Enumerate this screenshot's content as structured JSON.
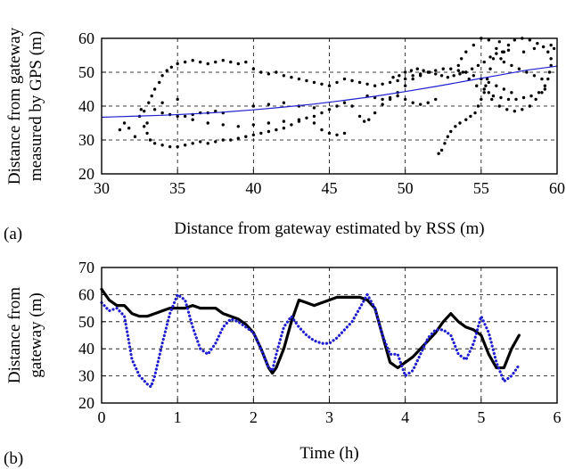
{
  "chart_data": [
    {
      "panel_label": "(a)",
      "type": "scatter",
      "xlabel": "Distance from gateway estimated by RSS (m)",
      "ylabel_lines": [
        "Distance from gateway",
        "measured by GPS (m)"
      ],
      "xlim": [
        30,
        60
      ],
      "ylim": [
        20,
        60
      ],
      "xticks": [
        30,
        35,
        40,
        45,
        50,
        55,
        60
      ],
      "yticks": [
        20,
        30,
        40,
        50,
        60
      ],
      "grid": true,
      "colors": {
        "points": "#000000",
        "fit": "#1f1fd0"
      },
      "points": [
        [
          31.2,
          33
        ],
        [
          31.5,
          35
        ],
        [
          31.8,
          33.5
        ],
        [
          32.2,
          31
        ],
        [
          32.5,
          37
        ],
        [
          32.6,
          39
        ],
        [
          32.8,
          38.5
        ],
        [
          33,
          35
        ],
        [
          33.1,
          41
        ],
        [
          33.3,
          43
        ],
        [
          33.5,
          45
        ],
        [
          33.8,
          47
        ],
        [
          34,
          49
        ],
        [
          34.3,
          50.5
        ],
        [
          34.6,
          51.5
        ],
        [
          35,
          52.5
        ],
        [
          35.5,
          53
        ],
        [
          36,
          53.5
        ],
        [
          36.5,
          53
        ],
        [
          37,
          52.5
        ],
        [
          37.5,
          53
        ],
        [
          38,
          53.5
        ],
        [
          38.5,
          53
        ],
        [
          39,
          52.5
        ],
        [
          39.5,
          53
        ],
        [
          40,
          51
        ],
        [
          40.5,
          50
        ],
        [
          41,
          49.5
        ],
        [
          41.5,
          50
        ],
        [
          42,
          49
        ],
        [
          42.5,
          48.5
        ],
        [
          43,
          48
        ],
        [
          43.5,
          47.5
        ],
        [
          44,
          47
        ],
        [
          44.5,
          46.5
        ],
        [
          45,
          46
        ],
        [
          45.5,
          47
        ],
        [
          46,
          48
        ],
        [
          46.5,
          47.5
        ],
        [
          47,
          47
        ],
        [
          47.5,
          46.5
        ],
        [
          48,
          46
        ],
        [
          48.5,
          46.5
        ],
        [
          49,
          47
        ],
        [
          49.5,
          47.5
        ],
        [
          50,
          48
        ],
        [
          50.5,
          49
        ],
        [
          51,
          49.5
        ],
        [
          51.5,
          50
        ],
        [
          52,
          50.5
        ],
        [
          52.5,
          51
        ],
        [
          53,
          51
        ],
        [
          53.5,
          50.5
        ],
        [
          54,
          50
        ],
        [
          54.5,
          49
        ],
        [
          55,
          48
        ],
        [
          55.5,
          47
        ],
        [
          56,
          46
        ],
        [
          56.5,
          45
        ],
        [
          57,
          44
        ],
        [
          32.8,
          34
        ],
        [
          33,
          32
        ],
        [
          33.2,
          30
        ],
        [
          33.5,
          29
        ],
        [
          34,
          28.5
        ],
        [
          34.5,
          28
        ],
        [
          35,
          28
        ],
        [
          35.5,
          28.5
        ],
        [
          36,
          29
        ],
        [
          36.5,
          29.5
        ],
        [
          37,
          29
        ],
        [
          37.5,
          29.5
        ],
        [
          38,
          30
        ],
        [
          38.5,
          30
        ],
        [
          39,
          30.5
        ],
        [
          39.5,
          31
        ],
        [
          40,
          31.5
        ],
        [
          40.5,
          32
        ],
        [
          41,
          32.5
        ],
        [
          41.5,
          33
        ],
        [
          42,
          33.5
        ],
        [
          42.5,
          34.5
        ],
        [
          43,
          35.5
        ],
        [
          43.5,
          36.5
        ],
        [
          44,
          37
        ],
        [
          44.5,
          38
        ],
        [
          45,
          39
        ],
        [
          45.5,
          40
        ],
        [
          46,
          41
        ],
        [
          46.5,
          40
        ],
        [
          47,
          37
        ],
        [
          47.3,
          35.5
        ],
        [
          47.6,
          36
        ],
        [
          48,
          38
        ],
        [
          48.5,
          40.5
        ],
        [
          49,
          42
        ],
        [
          49.5,
          44
        ],
        [
          50,
          46
        ],
        [
          50.5,
          48
        ],
        [
          51,
          49
        ],
        [
          33.5,
          39
        ],
        [
          34,
          38
        ],
        [
          34.5,
          37.5
        ],
        [
          35,
          37
        ],
        [
          35.5,
          37
        ],
        [
          36,
          37.5
        ],
        [
          36.5,
          38
        ],
        [
          37,
          38
        ],
        [
          37.5,
          38.5
        ],
        [
          38,
          38
        ],
        [
          40,
          40
        ],
        [
          41,
          40.5
        ],
        [
          42,
          41
        ],
        [
          43,
          40
        ],
        [
          44,
          39.5
        ],
        [
          44,
          35
        ],
        [
          44.5,
          33
        ],
        [
          45,
          32
        ],
        [
          45.5,
          31.5
        ],
        [
          46,
          32
        ],
        [
          52.2,
          26
        ],
        [
          52.4,
          27
        ],
        [
          52.6,
          29
        ],
        [
          52.8,
          31
        ],
        [
          53,
          32.5
        ],
        [
          53.3,
          34
        ],
        [
          53.6,
          35
        ],
        [
          54,
          36
        ],
        [
          54.3,
          37
        ],
        [
          54.6,
          38
        ],
        [
          54.8,
          40
        ],
        [
          55,
          42
        ],
        [
          55.2,
          45
        ],
        [
          55.4,
          48
        ],
        [
          55.6,
          51
        ],
        [
          55.8,
          54
        ],
        [
          56,
          57
        ],
        [
          56.2,
          59
        ],
        [
          55,
          60
        ],
        [
          55.5,
          59.5
        ],
        [
          54.5,
          58
        ],
        [
          54,
          56
        ],
        [
          53.7,
          54
        ],
        [
          53.5,
          52
        ],
        [
          53.8,
          50
        ],
        [
          54.2,
          48
        ],
        [
          54.7,
          46
        ],
        [
          55.2,
          44
        ],
        [
          55.7,
          42
        ],
        [
          56.2,
          40
        ],
        [
          56.7,
          39
        ],
        [
          57.2,
          38.5
        ],
        [
          57.7,
          39
        ],
        [
          58.2,
          40
        ],
        [
          58.6,
          42
        ],
        [
          59,
          44
        ],
        [
          59.2,
          46
        ],
        [
          59.4,
          48
        ],
        [
          59.5,
          50
        ],
        [
          59.6,
          52
        ],
        [
          59.6,
          54
        ],
        [
          59.4,
          56
        ],
        [
          59.1,
          57.5
        ],
        [
          58.7,
          58.5
        ],
        [
          58.2,
          59.5
        ],
        [
          57.7,
          60
        ],
        [
          57.2,
          59.5
        ],
        [
          56.8,
          58
        ],
        [
          56.5,
          56
        ],
        [
          56.3,
          54
        ],
        [
          56.5,
          53
        ],
        [
          57,
          52
        ],
        [
          57.5,
          51
        ],
        [
          58,
          50
        ],
        [
          58.5,
          49
        ],
        [
          59,
          48
        ],
        [
          59.6,
          58
        ],
        [
          59.8,
          57
        ],
        [
          58.5,
          57
        ],
        [
          57.8,
          56
        ],
        [
          55.3,
          46
        ],
        [
          55.5,
          44
        ],
        [
          55.8,
          43
        ],
        [
          56.3,
          42.5
        ],
        [
          56.8,
          42
        ],
        [
          57.3,
          42
        ],
        [
          57.8,
          42.5
        ],
        [
          58.3,
          43
        ],
        [
          58.8,
          44
        ],
        [
          59.2,
          45
        ],
        [
          49.2,
          48.5
        ],
        [
          49.6,
          49
        ],
        [
          50,
          50
        ],
        [
          50.4,
          50.5
        ],
        [
          50.8,
          51
        ],
        [
          51.2,
          50.5
        ],
        [
          51.6,
          50
        ],
        [
          52,
          49.5
        ],
        [
          52.4,
          49
        ],
        [
          52.8,
          48.5
        ],
        [
          53.2,
          49
        ],
        [
          53.6,
          49.5
        ],
        [
          54,
          50
        ],
        [
          54.4,
          51
        ],
        [
          54.8,
          52
        ],
        [
          55.2,
          53
        ],
        [
          55.6,
          54.5
        ],
        [
          56,
          55.5
        ],
        [
          56.4,
          56
        ],
        [
          56.8,
          56.5
        ],
        [
          47.5,
          43
        ],
        [
          48,
          42.5
        ],
        [
          48.5,
          42
        ],
        [
          49,
          42.5
        ],
        [
          49.5,
          43
        ],
        [
          50,
          42
        ],
        [
          50.5,
          41
        ],
        [
          51,
          40.5
        ],
        [
          51.5,
          41
        ],
        [
          52,
          42
        ],
        [
          36,
          36
        ],
        [
          37,
          35
        ],
        [
          38,
          34.5
        ],
        [
          39,
          34
        ],
        [
          40,
          34.5
        ],
        [
          41,
          35
        ],
        [
          42,
          35.5
        ],
        [
          43,
          36
        ],
        [
          34,
          41
        ],
        [
          35,
          42
        ]
      ],
      "fit_curve": [
        [
          30,
          36.7
        ],
        [
          32,
          37
        ],
        [
          34,
          37.3
        ],
        [
          36,
          37.7
        ],
        [
          38,
          38.2
        ],
        [
          40,
          38.9
        ],
        [
          42,
          39.7
        ],
        [
          44,
          40.6
        ],
        [
          46,
          41.7
        ],
        [
          48,
          42.9
        ],
        [
          50,
          44.3
        ],
        [
          52,
          45.8
        ],
        [
          54,
          47.4
        ],
        [
          56,
          49
        ],
        [
          58,
          50.6
        ],
        [
          60,
          51.8
        ]
      ]
    },
    {
      "panel_label": "(b)",
      "type": "line",
      "xlabel": "Time (h)",
      "ylabel_lines": [
        "Distance from",
        "gateway (m)"
      ],
      "xlim": [
        0,
        6
      ],
      "ylim": [
        20,
        70
      ],
      "xticks": [
        0,
        1,
        2,
        3,
        4,
        5,
        6
      ],
      "yticks": [
        20,
        30,
        40,
        50,
        60,
        70
      ],
      "grid": true,
      "series": [
        {
          "color": "#000000",
          "style": "solid",
          "x": [
            0,
            0.1,
            0.2,
            0.3,
            0.4,
            0.5,
            0.6,
            0.7,
            0.8,
            0.9,
            1.0,
            1.1,
            1.2,
            1.3,
            1.4,
            1.5,
            1.6,
            1.7,
            1.8,
            1.9,
            2.0,
            2.1,
            2.2,
            2.25,
            2.3,
            2.4,
            2.5,
            2.6,
            2.7,
            2.8,
            2.9,
            3.0,
            3.1,
            3.2,
            3.3,
            3.4,
            3.5,
            3.6,
            3.7,
            3.8,
            3.9,
            4.0,
            4.1,
            4.2,
            4.3,
            4.4,
            4.5,
            4.6,
            4.7,
            4.8,
            4.9,
            5.0,
            5.1,
            5.2,
            5.3,
            5.4,
            5.5
          ],
          "values": [
            62,
            58,
            56,
            56,
            53,
            52,
            52,
            53,
            54,
            55,
            55,
            55,
            56,
            55,
            55,
            55,
            53,
            52,
            51,
            49,
            46,
            40,
            33,
            31,
            33,
            40,
            50,
            58,
            57,
            56,
            57,
            58,
            59,
            59,
            59,
            59,
            58,
            55,
            45,
            35,
            33,
            35,
            37,
            40,
            43,
            46,
            50,
            53,
            50,
            48,
            47,
            45,
            38,
            33,
            33,
            40,
            45
          ]
        },
        {
          "color": "#1f1fd0",
          "style": "dotted",
          "x": [
            0,
            0.1,
            0.2,
            0.3,
            0.4,
            0.5,
            0.6,
            0.65,
            0.7,
            0.8,
            0.9,
            1.0,
            1.1,
            1.2,
            1.3,
            1.4,
            1.5,
            1.6,
            1.7,
            1.8,
            1.9,
            2.0,
            2.1,
            2.2,
            2.25,
            2.3,
            2.4,
            2.5,
            2.6,
            2.7,
            2.8,
            2.9,
            3.0,
            3.1,
            3.2,
            3.3,
            3.4,
            3.5,
            3.6,
            3.7,
            3.8,
            3.9,
            4.0,
            4.1,
            4.2,
            4.3,
            4.4,
            4.5,
            4.6,
            4.7,
            4.8,
            4.9,
            5.0,
            5.1,
            5.2,
            5.3,
            5.4,
            5.5
          ],
          "values": [
            57,
            54,
            55,
            52,
            36,
            30,
            27,
            26,
            30,
            42,
            53,
            60,
            58,
            48,
            40,
            38,
            42,
            48,
            51,
            50,
            48,
            46,
            40,
            33,
            32,
            38,
            48,
            52,
            48,
            45,
            43,
            42,
            42,
            44,
            47,
            50,
            55,
            60,
            55,
            45,
            38,
            38,
            30,
            32,
            38,
            44,
            47,
            47,
            45,
            38,
            36,
            42,
            52,
            46,
            35,
            28,
            30,
            34
          ]
        }
      ]
    }
  ]
}
